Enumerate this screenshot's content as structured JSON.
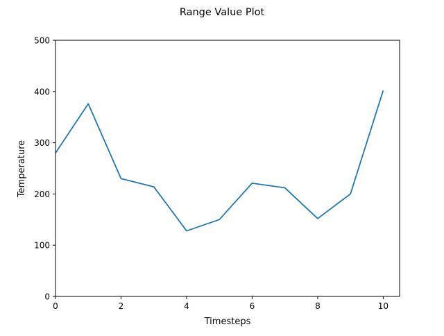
{
  "chart_data": {
    "type": "line",
    "title": "Range Value Plot",
    "xlabel": "Timesteps",
    "ylabel": "Temperature",
    "xlim": [
      0,
      10.5
    ],
    "ylim": [
      0,
      500
    ],
    "xticks": [
      0,
      2,
      4,
      6,
      8,
      10
    ],
    "yticks": [
      0,
      100,
      200,
      300,
      400,
      500
    ],
    "grid": false,
    "series": [
      {
        "color": "#1f77b4",
        "x": [
          0,
          1,
          2,
          3,
          4,
          5,
          6,
          7,
          8,
          9,
          10
        ],
        "y": [
          280,
          376,
          230,
          214,
          128,
          150,
          221,
          212,
          152,
          200,
          402
        ]
      }
    ]
  }
}
